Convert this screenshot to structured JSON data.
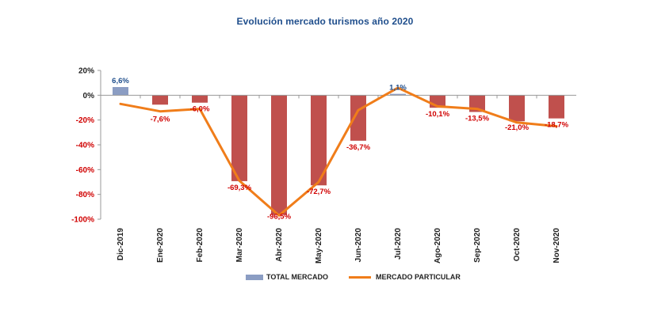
{
  "chart_data": {
    "type": "bar",
    "title": "Evolución mercado turismos año 2020",
    "categories": [
      "Dic-2019",
      "Ene-2020",
      "Feb-2020",
      "Mar-2020",
      "Abr-2020",
      "May-2020",
      "Jun-2020",
      "Jul-2020",
      "Ago-2020",
      "Sep-2020",
      "Oct-2020",
      "Nov-2020"
    ],
    "series": [
      {
        "name": "TOTAL MERCADO",
        "type": "bar",
        "values": [
          6.6,
          -7.6,
          -6.0,
          -69.3,
          -96.5,
          -72.7,
          -36.7,
          1.1,
          -10.1,
          -13.5,
          -21.0,
          -18.7
        ],
        "labels": [
          "6,6%",
          "-7,6%",
          "-6,0%",
          "-69,3%",
          "-96,5%",
          "-72,7%",
          "-36,7%",
          "1,1%",
          "-10,1%",
          "-13,5%",
          "-21,0%",
          "-18,7%"
        ]
      },
      {
        "name": "MERCADO PARTICULAR",
        "type": "line",
        "values": [
          -7,
          -13,
          -11,
          -69,
          -97,
          -70,
          -12,
          6,
          -9,
          -11,
          -22,
          -25
        ]
      }
    ],
    "ylim": [
      -100,
      20
    ],
    "yticks": [
      20,
      0,
      -20,
      -40,
      -60,
      -80,
      -100
    ],
    "ytick_labels": [
      "20%",
      "0%",
      "-20%",
      "-40%",
      "-60%",
      "-80%",
      "-100%"
    ],
    "colors": {
      "positive_bar": "#8b9dc3",
      "negative_bar": "#c0504d",
      "line": "#f07d1a",
      "positive_text": "#1f4e8c",
      "negative_text": "#d00000",
      "axis": "#999999"
    },
    "grid": false,
    "legend": "bottom-center"
  }
}
